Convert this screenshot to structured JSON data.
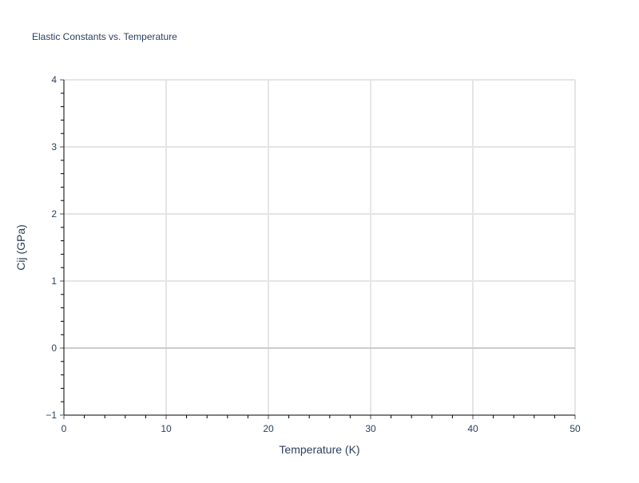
{
  "chart_data": {
    "type": "line",
    "title": "Elastic Constants vs. Temperature",
    "xlabel": "Temperature (K)",
    "ylabel": "Cij (GPa)",
    "xlim": [
      0,
      50
    ],
    "ylim": [
      -1,
      4
    ],
    "x_ticks": [
      "0",
      "10",
      "20",
      "30",
      "40",
      "50"
    ],
    "y_ticks": [
      "−1",
      "0",
      "1",
      "2",
      "3",
      "4"
    ],
    "grid": true,
    "series": []
  }
}
